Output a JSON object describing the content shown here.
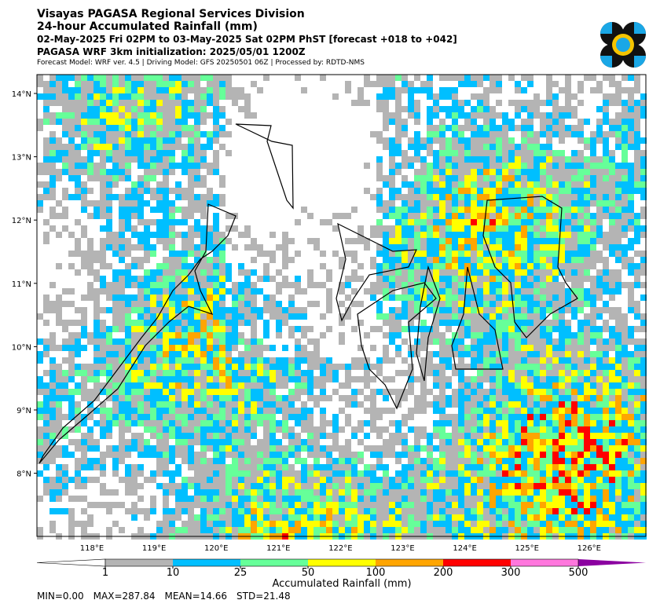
{
  "header": {
    "lines": [
      "Visayas PAGASA Regional Services Division",
      "24-hour Accumulated Rainfall (mm)",
      "02-May-2025 Fri 02PM to 03-May-2025 Sat 02PM PhST [forecast +018 to +042]",
      "PAGASA WRF 3km initialization: 2025/05/01 1200Z"
    ],
    "note": "Forecast Model: WRF ver. 4.5 | Driving Model: GFS 20250501 06Z | Processed by: RDTD-NMS"
  },
  "map": {
    "lat_labels": [
      "14°N",
      "13°N",
      "12°N",
      "11°N",
      "10°N",
      "9°N",
      "8°N"
    ],
    "lon_labels": [
      "118°E",
      "119°E",
      "120°E",
      "121°E",
      "122°E",
      "123°E",
      "124°E",
      "125°E",
      "126°E"
    ]
  },
  "colorbar": {
    "label": "Accumulated Rainfall (mm)",
    "ticks": [
      "1",
      "10",
      "25",
      "50",
      "100",
      "200",
      "300",
      "500"
    ],
    "colors": [
      "#ffffff",
      "#b4b4b4",
      "#00bfff",
      "#66ff99",
      "#ffff00",
      "#ffa500",
      "#ff0000",
      "#ff77dd",
      "#8b00a0"
    ]
  },
  "stats": [
    "MIN=0.00",
    "MAX=287.84",
    "MEAN=14.66",
    "STD=21.48"
  ]
}
